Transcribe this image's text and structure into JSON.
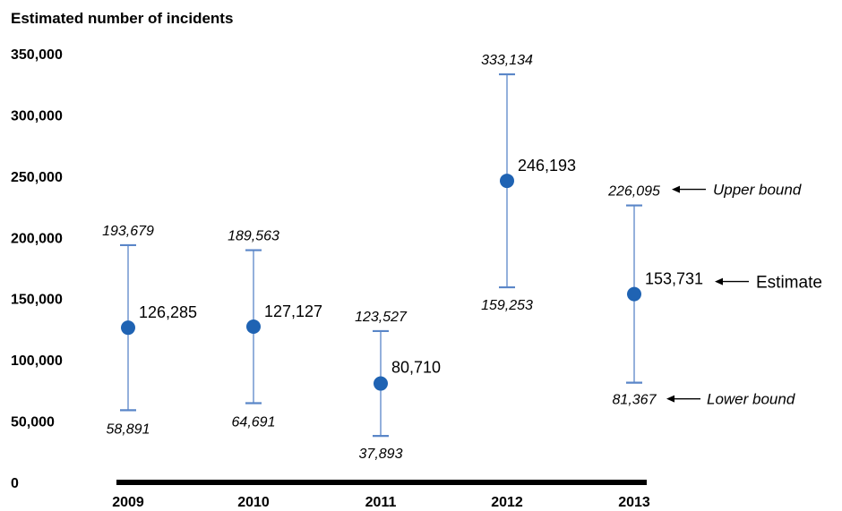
{
  "chart_data": {
    "type": "scatter",
    "ylabel": "Estimated number of incidents",
    "ylim": [
      0,
      350000
    ],
    "y_ticks": [
      "0",
      "50,000",
      "100,000",
      "150,000",
      "200,000",
      "250,000",
      "300,000",
      "350,000"
    ],
    "y_tick_values": [
      0,
      50000,
      100000,
      150000,
      200000,
      250000,
      300000,
      350000
    ],
    "categories": [
      "2009",
      "2010",
      "2011",
      "2012",
      "2013"
    ],
    "points": [
      {
        "x": "2009",
        "estimate": 126285,
        "estimate_label": "126,285",
        "upper": 193679,
        "upper_label": "193,679",
        "lower": 58891,
        "lower_label": "58,891"
      },
      {
        "x": "2010",
        "estimate": 127127,
        "estimate_label": "127,127",
        "upper": 189563,
        "upper_label": "189,563",
        "lower": 64691,
        "lower_label": "64,691"
      },
      {
        "x": "2011",
        "estimate": 80710,
        "estimate_label": "80,710",
        "upper": 123527,
        "upper_label": "123,527",
        "lower": 37893,
        "lower_label": "37,893"
      },
      {
        "x": "2012",
        "estimate": 246193,
        "estimate_label": "246,193",
        "upper": 333134,
        "upper_label": "333,134",
        "lower": 159253,
        "lower_label": "159,253"
      },
      {
        "x": "2013",
        "estimate": 153731,
        "estimate_label": "153,731",
        "upper": 226095,
        "upper_label": "226,095",
        "lower": 81367,
        "lower_label": "81,367"
      }
    ],
    "annotations": {
      "upper": "Upper bound",
      "estimate": "Estimate",
      "lower": "Lower bound"
    },
    "grid": false,
    "colors": {
      "point": "#1f63b3",
      "errorbar": "#5a86c8",
      "axis": "#000000"
    }
  }
}
